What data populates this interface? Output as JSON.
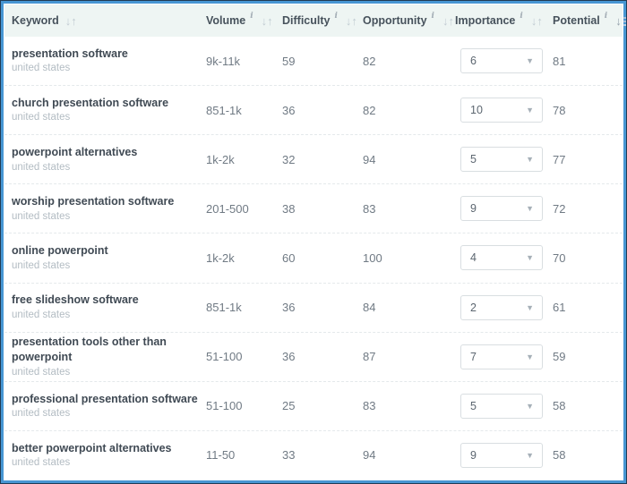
{
  "colors": {
    "accent_border": "#4796d3",
    "border_outer": "#223c55",
    "header_bg": "#eef5f3"
  },
  "table": {
    "columns": [
      {
        "label": "Keyword",
        "has_info": false,
        "sort": "inactive"
      },
      {
        "label": "Volume",
        "has_info": true,
        "sort": "inactive"
      },
      {
        "label": "Difficulty",
        "has_info": true,
        "sort": "inactive"
      },
      {
        "label": "Opportunity",
        "has_info": true,
        "sort": "inactive"
      },
      {
        "label": "Importance",
        "has_info": true,
        "sort": "inactive"
      },
      {
        "label": "Potential",
        "has_info": true,
        "sort": "desc-active"
      }
    ],
    "rows": [
      {
        "keyword": "presentation software",
        "location": "united states",
        "volume": "9k-11k",
        "difficulty": "59",
        "opportunity": "82",
        "importance": "6",
        "potential": "81"
      },
      {
        "keyword": "church presentation software",
        "location": "united states",
        "volume": "851-1k",
        "difficulty": "36",
        "opportunity": "82",
        "importance": "10",
        "potential": "78"
      },
      {
        "keyword": "powerpoint alternatives",
        "location": "united states",
        "volume": "1k-2k",
        "difficulty": "32",
        "opportunity": "94",
        "importance": "5",
        "potential": "77"
      },
      {
        "keyword": "worship presentation software",
        "location": "united states",
        "volume": "201-500",
        "difficulty": "38",
        "opportunity": "83",
        "importance": "9",
        "potential": "72"
      },
      {
        "keyword": "online powerpoint",
        "location": "united states",
        "volume": "1k-2k",
        "difficulty": "60",
        "opportunity": "100",
        "importance": "4",
        "potential": "70"
      },
      {
        "keyword": "free slideshow software",
        "location": "united states",
        "volume": "851-1k",
        "difficulty": "36",
        "opportunity": "84",
        "importance": "2",
        "potential": "61"
      },
      {
        "keyword": "presentation tools other than powerpoint",
        "location": "united states",
        "volume": "51-100",
        "difficulty": "36",
        "opportunity": "87",
        "importance": "7",
        "potential": "59"
      },
      {
        "keyword": "professional presentation software",
        "location": "united states",
        "volume": "51-100",
        "difficulty": "25",
        "opportunity": "83",
        "importance": "5",
        "potential": "58"
      },
      {
        "keyword": "better powerpoint alternatives",
        "location": "united states",
        "volume": "11-50",
        "difficulty": "33",
        "opportunity": "94",
        "importance": "9",
        "potential": "58"
      }
    ]
  },
  "icons": {
    "sort_down": "↓",
    "sort_up": "↑",
    "info": "i",
    "dropdown_caret": "▼"
  }
}
